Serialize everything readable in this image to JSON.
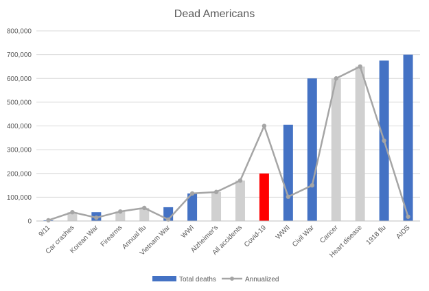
{
  "chart_data": {
    "type": "bar",
    "title": "Dead Americans",
    "xlabel": "",
    "ylabel": "",
    "ylim": [
      0,
      800000
    ],
    "yticks": [
      0,
      100000,
      200000,
      300000,
      400000,
      500000,
      600000,
      700000,
      800000
    ],
    "ytick_labels": [
      "0",
      "100,000",
      "200,000",
      "300,000",
      "400,000",
      "500,000",
      "600,000",
      "700,000",
      "800,000"
    ],
    "grid": true,
    "legend_position": "bottom",
    "categories": [
      "9/11",
      "Car crashes",
      "Korean War",
      "Firearms",
      "Annual flu",
      "Vietnam War",
      "WWI",
      "Alzheimer's",
      "All accidents",
      "Covid-19",
      "WWII",
      "Civil War",
      "Cancer",
      "Heart disease",
      "1918 flu",
      "AIDS"
    ],
    "series": [
      {
        "name": "Total deaths",
        "type": "bar",
        "color": "#4472C4",
        "values": [
          3000,
          37000,
          37000,
          40000,
          55000,
          58000,
          116000,
          122000,
          170000,
          200000,
          405000,
          600000,
          600000,
          650000,
          675000,
          700000
        ],
        "bar_colors": [
          "#4472C4",
          "#D0D0D0",
          "#4472C4",
          "#D0D0D0",
          "#D0D0D0",
          "#4472C4",
          "#4472C4",
          "#D0D0D0",
          "#D0D0D0",
          "#FF0000",
          "#4472C4",
          "#4472C4",
          "#D0D0D0",
          "#D0D0D0",
          "#4472C4",
          "#4472C4"
        ]
      },
      {
        "name": "Annualized",
        "type": "line",
        "color": "#A5A5A5",
        "values": [
          3000,
          37000,
          14000,
          40000,
          55000,
          6000,
          116000,
          122000,
          170000,
          400000,
          102000,
          150000,
          600000,
          650000,
          338000,
          18000
        ]
      }
    ]
  }
}
